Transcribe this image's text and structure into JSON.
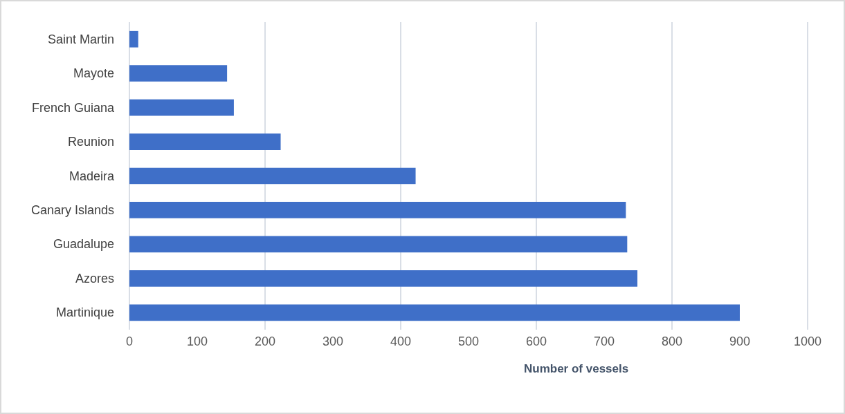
{
  "chart_data": {
    "type": "bar",
    "orientation": "horizontal",
    "xlabel": "Number of vessels",
    "categories": [
      "Saint Martin",
      "Mayote",
      "French Guiana",
      "Reunion",
      "Madeira",
      "Canary Islands",
      "Guadalupe",
      "Azores",
      "Martinique"
    ],
    "values": [
      13,
      144,
      154,
      223,
      422,
      732,
      734,
      749,
      900
    ],
    "color": "#3f6fc8",
    "xlim": [
      0,
      1000
    ],
    "xticks": [
      0,
      100,
      200,
      300,
      400,
      500,
      600,
      700,
      800,
      900,
      1000
    ],
    "grid": "x"
  }
}
